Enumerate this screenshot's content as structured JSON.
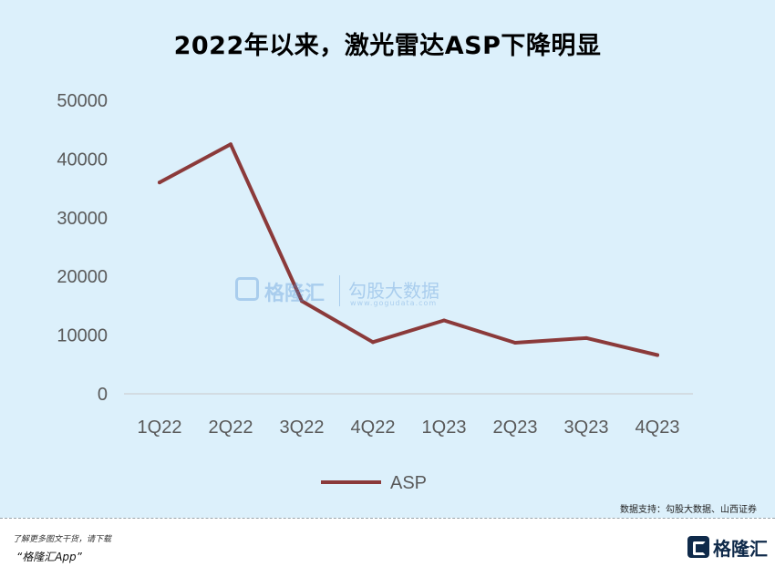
{
  "title": "2022年以来，激光雷达ASP下降明显",
  "watermark": {
    "brand": "格隆汇",
    "text": "勾股大数据",
    "url": "www.gogudata.com"
  },
  "source": "数据支持：勾股大数据、山西证券",
  "footer": {
    "line1": "了解更多图文干货，请下载",
    "line2": "“格隆汇App”",
    "brand": "格隆汇"
  },
  "colors": {
    "background": "#dcf0fb",
    "series": "#8b3a3a",
    "tick_text": "#595959"
  },
  "chart_data": {
    "type": "line",
    "title": "2022年以来，激光雷达ASP下降明显",
    "categories": [
      "1Q22",
      "2Q22",
      "3Q22",
      "4Q22",
      "1Q23",
      "2Q23",
      "3Q23",
      "4Q23"
    ],
    "series": [
      {
        "name": "ASP",
        "values": [
          36000,
          42500,
          15800,
          8800,
          12500,
          8700,
          9500,
          6600
        ]
      }
    ],
    "yticks": [
      "0",
      "10000",
      "20000",
      "30000",
      "40000",
      "50000"
    ],
    "ylim": [
      0,
      50000
    ],
    "grid": false,
    "legend": "bottom"
  }
}
